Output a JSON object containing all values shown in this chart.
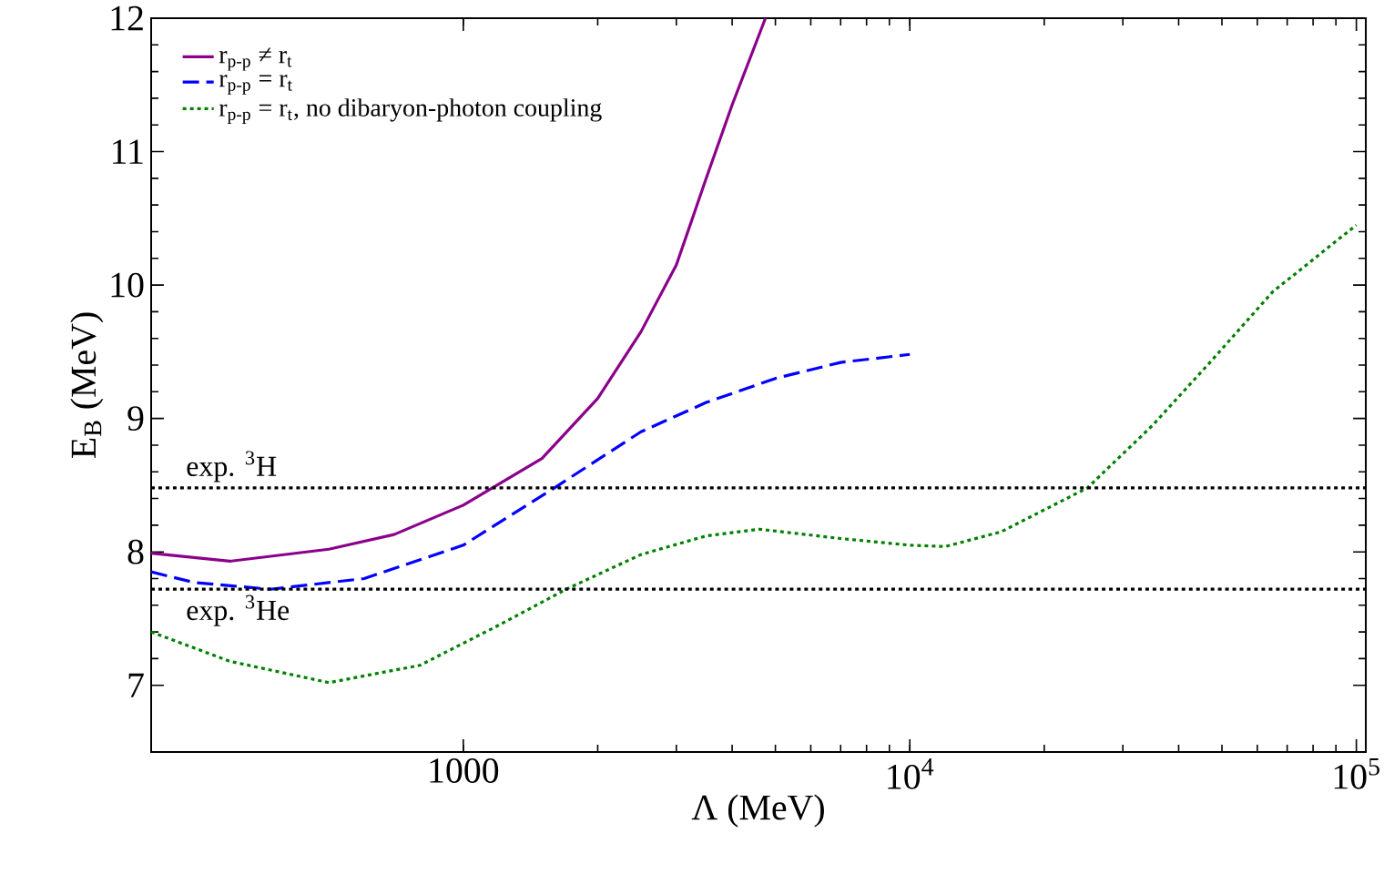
{
  "chart_data": {
    "type": "line",
    "xlabel": "Λ (MeV)",
    "ylabel": "E$_{B}$ (MeV)",
    "log": "x",
    "xlim": [
      200,
      105000
    ],
    "xticks": [
      1000,
      {
        "value": 10000,
        "label": "10$^{4}$"
      },
      {
        "value": 100000,
        "label": "10$^{5}$"
      }
    ],
    "ylim": [
      6.5,
      12
    ],
    "yticks": [
      7,
      8,
      9,
      10,
      11,
      12
    ],
    "grid": false,
    "legend": "top left",
    "marker": "none",
    "ref_lines": [
      {
        "axis": "y",
        "value": 8.48,
        "label": "exp. $^{3}$H",
        "color": "#000000",
        "line_style": "dotted"
      },
      {
        "axis": "y",
        "value": 7.72,
        "label": "exp. $^{3}$He",
        "color": "#000000",
        "line_style": "dotted"
      }
    ],
    "series": [
      {
        "name": "r$_{p-p}$ ≠ r$_{t}$",
        "color": "#8b008b",
        "line_style": "solid",
        "x": [
          200,
          300,
          500,
          700,
          1000,
          1500,
          2000,
          2500,
          3000,
          3500,
          4000,
          4750
        ],
        "values": [
          7.99,
          7.93,
          8.02,
          8.13,
          8.35,
          8.7,
          9.15,
          9.65,
          10.15,
          10.8,
          11.35,
          12
        ]
      },
      {
        "name": "r$_{p-p}$ = r$_{t}$",
        "color": "#0000ff",
        "line_style": "dashed",
        "x": [
          200,
          250,
          370,
          600,
          1000,
          1600,
          2500,
          3500,
          5000,
          7000,
          10000
        ],
        "values": [
          7.85,
          7.77,
          7.72,
          7.8,
          8.05,
          8.48,
          8.9,
          9.12,
          9.3,
          9.42,
          9.48
        ]
      },
      {
        "name": "r$_{p-p}$ = r$_{t}$, no dibaryon-photon coupling",
        "color": "#008000",
        "line_style": "dotted",
        "x": [
          200,
          300,
          500,
          800,
          1200,
          1700,
          2500,
          3500,
          4600,
          7000,
          10000,
          12000,
          16000,
          25000,
          35000,
          47000,
          65000,
          100000
        ],
        "values": [
          7.4,
          7.18,
          7.02,
          7.15,
          7.45,
          7.72,
          7.98,
          8.12,
          8.17,
          8.1,
          8.05,
          8.04,
          8.15,
          8.48,
          8.95,
          9.42,
          9.95,
          10.45
        ]
      }
    ]
  }
}
